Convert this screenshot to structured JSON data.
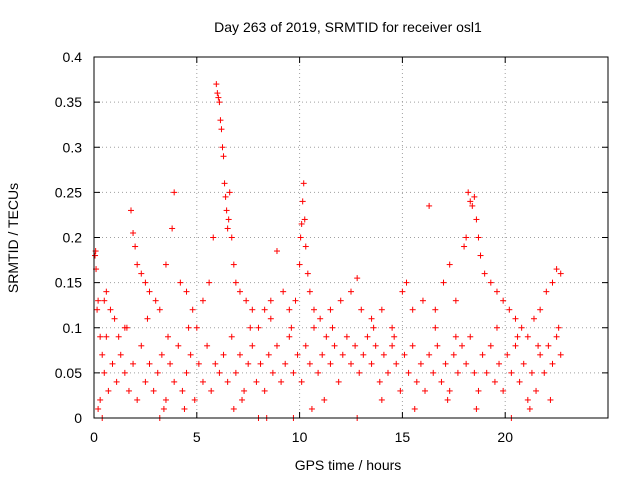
{
  "chart_data": {
    "type": "scatter",
    "title": "Day 263 of 2019, SRMTID for receiver osl1",
    "xlabel": "GPS time / hours",
    "ylabel": "SRMTID / TECUs",
    "xlim": [
      0,
      25
    ],
    "ylim": [
      0,
      0.4
    ],
    "xticks": [
      0,
      5,
      10,
      15,
      20
    ],
    "xtick_labels": [
      "0",
      "5",
      "10",
      "15",
      "20"
    ],
    "yticks": [
      0,
      0.05,
      0.1,
      0.15,
      0.2,
      0.25,
      0.3,
      0.35,
      0.4
    ],
    "ytick_labels": [
      "0",
      "0.05",
      "0.1",
      "0.15",
      "0.2",
      "0.25",
      "0.3",
      "0.35",
      "0.4"
    ],
    "grid": true,
    "marker": "plus",
    "color": "#ff0000",
    "series": [
      {
        "points": [
          [
            0.05,
            0.18
          ],
          [
            0.08,
            0.185
          ],
          [
            0.1,
            0.165
          ],
          [
            0.15,
            0.12
          ],
          [
            0.2,
            0.13
          ],
          [
            0.3,
            0.09
          ],
          [
            0.4,
            0.07
          ],
          [
            0.5,
            0.13
          ],
          [
            0.6,
            0.14
          ],
          [
            0.8,
            0.12
          ],
          [
            1.0,
            0.11
          ],
          [
            1.2,
            0.09
          ],
          [
            1.5,
            0.1
          ],
          [
            1.8,
            0.23
          ],
          [
            1.9,
            0.205
          ],
          [
            2.0,
            0.19
          ],
          [
            2.1,
            0.17
          ],
          [
            2.3,
            0.16
          ],
          [
            2.5,
            0.15
          ],
          [
            2.7,
            0.14
          ],
          [
            3.0,
            0.13
          ],
          [
            3.2,
            0.12
          ],
          [
            3.5,
            0.17
          ],
          [
            3.8,
            0.21
          ],
          [
            3.9,
            0.25
          ],
          [
            4.2,
            0.15
          ],
          [
            4.5,
            0.14
          ],
          [
            4.8,
            0.12
          ],
          [
            5.0,
            0.1
          ],
          [
            5.3,
            0.13
          ],
          [
            5.6,
            0.15
          ],
          [
            5.8,
            0.2
          ],
          [
            5.95,
            0.37
          ],
          [
            6.0,
            0.36
          ],
          [
            6.05,
            0.355
          ],
          [
            6.1,
            0.35
          ],
          [
            6.15,
            0.33
          ],
          [
            6.2,
            0.32
          ],
          [
            6.25,
            0.3
          ],
          [
            6.3,
            0.29
          ],
          [
            6.35,
            0.26
          ],
          [
            6.4,
            0.245
          ],
          [
            6.45,
            0.23
          ],
          [
            6.5,
            0.21
          ],
          [
            6.55,
            0.22
          ],
          [
            6.6,
            0.25
          ],
          [
            6.7,
            0.2
          ],
          [
            6.8,
            0.17
          ],
          [
            6.9,
            0.15
          ],
          [
            7.1,
            0.14
          ],
          [
            7.4,
            0.13
          ],
          [
            7.7,
            0.12
          ],
          [
            8.0,
            0.1
          ],
          [
            8.3,
            0.12
          ],
          [
            8.6,
            0.13
          ],
          [
            8.9,
            0.185
          ],
          [
            9.2,
            0.14
          ],
          [
            9.5,
            0.12
          ],
          [
            9.8,
            0.13
          ],
          [
            10.0,
            0.17
          ],
          [
            10.05,
            0.2
          ],
          [
            10.1,
            0.215
          ],
          [
            10.15,
            0.24
          ],
          [
            10.2,
            0.26
          ],
          [
            10.25,
            0.22
          ],
          [
            10.3,
            0.19
          ],
          [
            10.4,
            0.16
          ],
          [
            10.5,
            0.14
          ],
          [
            10.7,
            0.12
          ],
          [
            11.0,
            0.11
          ],
          [
            11.5,
            0.12
          ],
          [
            12.0,
            0.13
          ],
          [
            12.5,
            0.14
          ],
          [
            12.8,
            0.155
          ],
          [
            13.0,
            0.12
          ],
          [
            13.5,
            0.11
          ],
          [
            14.0,
            0.12
          ],
          [
            14.5,
            0.1
          ],
          [
            15.0,
            0.14
          ],
          [
            15.2,
            0.15
          ],
          [
            15.5,
            0.12
          ],
          [
            16.0,
            0.13
          ],
          [
            16.3,
            0.235
          ],
          [
            16.6,
            0.12
          ],
          [
            17.0,
            0.15
          ],
          [
            17.3,
            0.17
          ],
          [
            17.6,
            0.13
          ],
          [
            18.0,
            0.19
          ],
          [
            18.1,
            0.2
          ],
          [
            18.2,
            0.25
          ],
          [
            18.3,
            0.24
          ],
          [
            18.4,
            0.235
          ],
          [
            18.5,
            0.245
          ],
          [
            18.6,
            0.22
          ],
          [
            18.7,
            0.2
          ],
          [
            18.8,
            0.18
          ],
          [
            19.0,
            0.16
          ],
          [
            19.3,
            0.15
          ],
          [
            19.6,
            0.14
          ],
          [
            19.9,
            0.13
          ],
          [
            20.2,
            0.12
          ],
          [
            20.5,
            0.11
          ],
          [
            20.8,
            0.1
          ],
          [
            21.1,
            0.09
          ],
          [
            21.4,
            0.11
          ],
          [
            21.7,
            0.12
          ],
          [
            22.0,
            0.14
          ],
          [
            22.3,
            0.15
          ],
          [
            22.5,
            0.165
          ],
          [
            22.7,
            0.16
          ],
          [
            0.3,
            0.02
          ],
          [
            0.5,
            0.05
          ],
          [
            0.7,
            0.03
          ],
          [
            0.9,
            0.06
          ],
          [
            1.1,
            0.04
          ],
          [
            1.3,
            0.07
          ],
          [
            1.5,
            0.05
          ],
          [
            1.7,
            0.03
          ],
          [
            1.9,
            0.06
          ],
          [
            2.1,
            0.02
          ],
          [
            2.3,
            0.08
          ],
          [
            2.5,
            0.04
          ],
          [
            2.7,
            0.06
          ],
          [
            2.9,
            0.03
          ],
          [
            3.1,
            0.05
          ],
          [
            3.3,
            0.07
          ],
          [
            3.5,
            0.02
          ],
          [
            3.7,
            0.06
          ],
          [
            3.9,
            0.04
          ],
          [
            4.1,
            0.08
          ],
          [
            4.3,
            0.03
          ],
          [
            4.5,
            0.05
          ],
          [
            4.7,
            0.07
          ],
          [
            4.9,
            0.02
          ],
          [
            5.1,
            0.06
          ],
          [
            5.3,
            0.04
          ],
          [
            5.5,
            0.08
          ],
          [
            5.7,
            0.03
          ],
          [
            5.9,
            0.06
          ],
          [
            6.1,
            0.05
          ],
          [
            6.3,
            0.07
          ],
          [
            6.5,
            0.04
          ],
          [
            6.7,
            0.09
          ],
          [
            6.9,
            0.05
          ],
          [
            7.1,
            0.07
          ],
          [
            7.3,
            0.03
          ],
          [
            7.5,
            0.06
          ],
          [
            7.7,
            0.08
          ],
          [
            7.9,
            0.04
          ],
          [
            8.1,
            0.06
          ],
          [
            8.3,
            0.03
          ],
          [
            8.5,
            0.07
          ],
          [
            8.7,
            0.05
          ],
          [
            8.9,
            0.08
          ],
          [
            9.1,
            0.04
          ],
          [
            9.3,
            0.06
          ],
          [
            9.5,
            0.09
          ],
          [
            9.7,
            0.05
          ],
          [
            9.9,
            0.07
          ],
          [
            10.1,
            0.04
          ],
          [
            10.3,
            0.08
          ],
          [
            10.5,
            0.06
          ],
          [
            10.7,
            0.1
          ],
          [
            10.9,
            0.05
          ],
          [
            11.1,
            0.07
          ],
          [
            11.3,
            0.09
          ],
          [
            11.5,
            0.06
          ],
          [
            11.7,
            0.08
          ],
          [
            11.9,
            0.04
          ],
          [
            12.1,
            0.07
          ],
          [
            12.3,
            0.09
          ],
          [
            12.5,
            0.06
          ],
          [
            12.7,
            0.08
          ],
          [
            12.9,
            0.05
          ],
          [
            13.1,
            0.07
          ],
          [
            13.3,
            0.09
          ],
          [
            13.5,
            0.06
          ],
          [
            13.7,
            0.08
          ],
          [
            13.9,
            0.04
          ],
          [
            14.1,
            0.07
          ],
          [
            14.3,
            0.05
          ],
          [
            14.5,
            0.08
          ],
          [
            14.7,
            0.06
          ],
          [
            14.9,
            0.03
          ],
          [
            15.1,
            0.07
          ],
          [
            15.3,
            0.05
          ],
          [
            15.5,
            0.08
          ],
          [
            15.7,
            0.04
          ],
          [
            15.9,
            0.06
          ],
          [
            16.1,
            0.03
          ],
          [
            16.3,
            0.07
          ],
          [
            16.5,
            0.05
          ],
          [
            16.7,
            0.08
          ],
          [
            16.9,
            0.04
          ],
          [
            17.1,
            0.06
          ],
          [
            17.3,
            0.03
          ],
          [
            17.5,
            0.07
          ],
          [
            17.7,
            0.05
          ],
          [
            17.9,
            0.08
          ],
          [
            18.1,
            0.06
          ],
          [
            18.3,
            0.09
          ],
          [
            18.5,
            0.05
          ],
          [
            18.7,
            0.03
          ],
          [
            18.9,
            0.07
          ],
          [
            19.1,
            0.05
          ],
          [
            19.3,
            0.08
          ],
          [
            19.5,
            0.04
          ],
          [
            19.7,
            0.06
          ],
          [
            19.9,
            0.03
          ],
          [
            20.1,
            0.07
          ],
          [
            20.3,
            0.05
          ],
          [
            20.5,
            0.08
          ],
          [
            20.7,
            0.04
          ],
          [
            20.9,
            0.06
          ],
          [
            21.1,
            0.02
          ],
          [
            21.3,
            0.05
          ],
          [
            21.5,
            0.03
          ],
          [
            21.7,
            0.07
          ],
          [
            21.9,
            0.05
          ],
          [
            22.1,
            0.08
          ],
          [
            22.3,
            0.06
          ],
          [
            22.5,
            0.09
          ],
          [
            22.7,
            0.07
          ],
          [
            0.6,
            0.09
          ],
          [
            1.6,
            0.1
          ],
          [
            2.6,
            0.11
          ],
          [
            3.6,
            0.09
          ],
          [
            4.6,
            0.1
          ],
          [
            7.6,
            0.1
          ],
          [
            8.6,
            0.11
          ],
          [
            9.6,
            0.1
          ],
          [
            11.6,
            0.1
          ],
          [
            13.6,
            0.1
          ],
          [
            14.6,
            0.09
          ],
          [
            16.6,
            0.1
          ],
          [
            17.6,
            0.09
          ],
          [
            19.6,
            0.1
          ],
          [
            20.6,
            0.09
          ],
          [
            21.6,
            0.08
          ],
          [
            22.6,
            0.1
          ],
          [
            0.4,
            0.0
          ],
          [
            3.2,
            0.0
          ],
          [
            8.0,
            0.0
          ],
          [
            8.4,
            0.0
          ],
          [
            9.7,
            0.0
          ],
          [
            12.8,
            0.0
          ],
          [
            20.3,
            0.0
          ],
          [
            0.2,
            0.01
          ],
          [
            4.4,
            0.01
          ],
          [
            6.8,
            0.01
          ],
          [
            10.6,
            0.01
          ],
          [
            15.6,
            0.01
          ],
          [
            18.6,
            0.01
          ],
          [
            21.2,
            0.01
          ],
          [
            22.2,
            0.02
          ],
          [
            3.4,
            0.01
          ],
          [
            7.2,
            0.02
          ],
          [
            11.2,
            0.02
          ],
          [
            14.0,
            0.02
          ],
          [
            17.2,
            0.02
          ]
        ]
      }
    ]
  }
}
